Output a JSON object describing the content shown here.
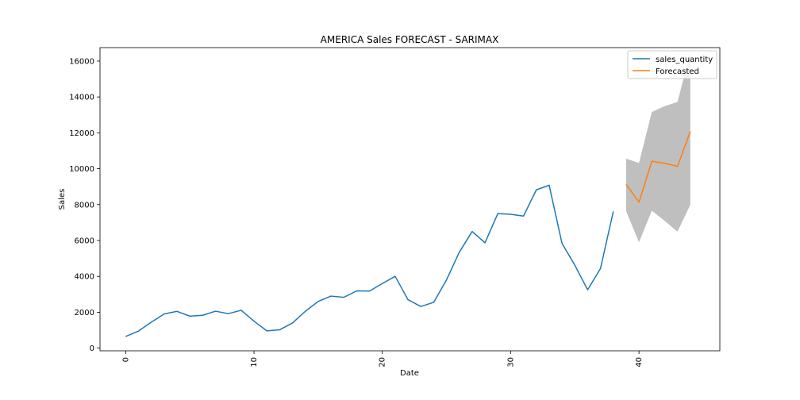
{
  "chart_data": {
    "type": "line",
    "title": "AMERICA Sales FORECAST - SARIMAX",
    "xlabel": "Date",
    "ylabel": "Sales",
    "xlim": [
      -2,
      46.3
    ],
    "ylim": [
      -150,
      16750
    ],
    "x_ticks": [
      0,
      10,
      20,
      30,
      40
    ],
    "y_ticks": [
      0,
      2000,
      4000,
      6000,
      8000,
      10000,
      12000,
      14000,
      16000
    ],
    "grid": false,
    "legend_position": "top-right",
    "series": [
      {
        "name": "sales_quantity",
        "color": "#1f77b4",
        "x": [
          0,
          1,
          2,
          3,
          4,
          5,
          6,
          7,
          8,
          9,
          10,
          11,
          12,
          13,
          14,
          15,
          16,
          17,
          18,
          19,
          20,
          21,
          22,
          23,
          24,
          25,
          26,
          27,
          28,
          29,
          30,
          31,
          32,
          33,
          34,
          35,
          36,
          37,
          38
        ],
        "values": [
          650,
          950,
          1450,
          1900,
          2050,
          1780,
          1830,
          2060,
          1920,
          2110,
          1500,
          960,
          1020,
          1400,
          2050,
          2600,
          2900,
          2830,
          3190,
          3180,
          3600,
          4000,
          2700,
          2320,
          2550,
          3800,
          5350,
          6500,
          5870,
          7500,
          7460,
          7360,
          8820,
          9080,
          5840,
          4620,
          3250,
          4440,
          7620
        ]
      },
      {
        "name": "Forecasted",
        "color": "#ff7f0e",
        "x": [
          39,
          40,
          41,
          42,
          43,
          44
        ],
        "values": [
          9130,
          8130,
          10420,
          10300,
          10130,
          12080
        ]
      }
    ],
    "confidence_band": {
      "color": "#808080",
      "x": [
        39,
        40,
        41,
        42,
        43,
        44
      ],
      "lower": [
        7630,
        5900,
        7660,
        7090,
        6490,
        7990
      ],
      "upper": [
        10560,
        10320,
        13160,
        13490,
        13720,
        16500
      ]
    }
  }
}
